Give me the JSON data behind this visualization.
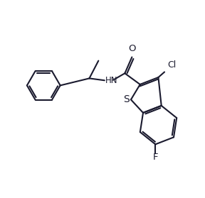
{
  "bg_color": "#ffffff",
  "line_color": "#1a1a2e",
  "line_width": 1.5,
  "font_size": 8.5,
  "figsize": [
    2.88,
    2.79
  ],
  "dpi": 100,
  "xlim": [
    0,
    10
  ],
  "ylim": [
    0,
    9.66
  ]
}
